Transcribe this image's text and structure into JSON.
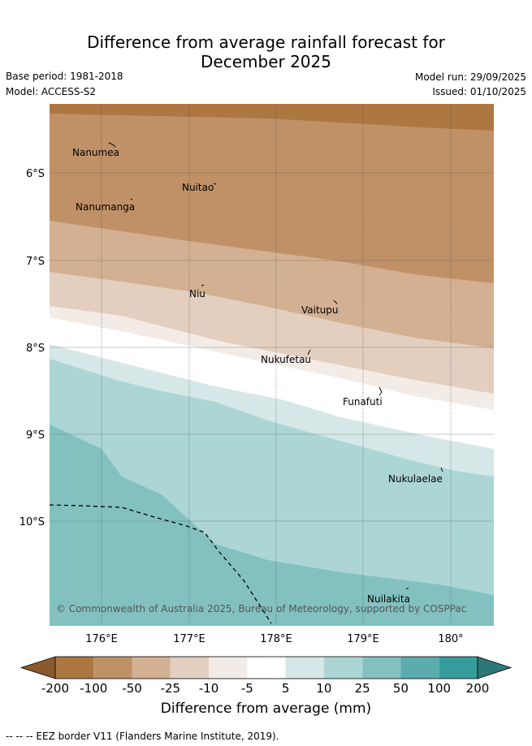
{
  "title": {
    "line1": "Difference from average rainfall forecast for",
    "line2": "December 2025"
  },
  "meta": {
    "base_period": "Base period: 1981-2018",
    "model": "Model: ACCESS-S2",
    "model_run": "Model run: 29/09/2025",
    "issued": "Issued: 01/10/2025"
  },
  "map": {
    "lat_labels": [
      "6°S",
      "7°S",
      "8°S",
      "9°S",
      "10°S"
    ],
    "lon_labels": [
      "176°E",
      "177°E",
      "178°E",
      "179°E",
      "180°"
    ],
    "places": [
      "Nanumea",
      "Nuitao",
      "Nanumanga",
      "Niu",
      "Vaitupu",
      "Nukufetau",
      "Funafuti",
      "Nukulaelae",
      "Nuilakita"
    ],
    "copyright": "© Commonwealth of Australia 2025, Bureau of Meteorology, supported by COSPPac"
  },
  "legend": {
    "ticks": [
      "-200",
      "-100",
      "-50",
      "-25",
      "-10",
      "-5",
      "5",
      "10",
      "25",
      "50",
      "100",
      "200"
    ],
    "colors": [
      "#ad7741",
      "#c09167",
      "#d3b092",
      "#e3cfbf",
      "#f3ebe6",
      "#ffffff",
      "#d5e8e7",
      "#acd6d6",
      "#83c1c1",
      "#5aadac",
      "#349d9c"
    ],
    "extend_low_color": "#8a5a2c",
    "extend_high_color": "#2e7777",
    "axis_title": "Difference from average (mm)"
  },
  "footer": {
    "eez_note": "--  --  -- EEZ border V11 (Flanders Marine Institute, 2019)."
  }
}
